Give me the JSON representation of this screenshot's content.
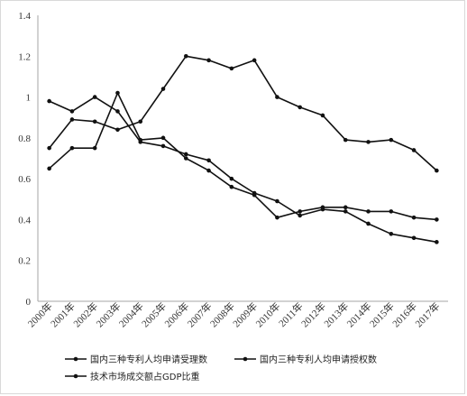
{
  "chart_data": {
    "type": "line",
    "categories": [
      "2000年",
      "2001年",
      "2002年",
      "2003年",
      "2004年",
      "2005年",
      "2006年",
      "2007年",
      "2008年",
      "2009年",
      "2010年",
      "2011年",
      "2012年",
      "2013年",
      "2014年",
      "2015年",
      "2016年",
      "2017年"
    ],
    "ylim": [
      0,
      1.4
    ],
    "yticks": [
      0,
      0.2,
      0.4,
      0.6,
      0.8,
      1,
      1.2,
      1.4
    ],
    "ytick_labels": [
      "0",
      "0.2",
      "0.4",
      "0.6",
      "0.8",
      "1",
      "1.2",
      "1.4"
    ],
    "grid": false,
    "legend_position": "bottom",
    "series": [
      {
        "name": "国内三种专利人均申请受理数",
        "color": "#111111",
        "values": [
          0.98,
          0.93,
          1.0,
          0.93,
          0.78,
          0.76,
          0.72,
          0.69,
          0.6,
          0.53,
          0.49,
          0.42,
          0.45,
          0.44,
          0.38,
          0.33,
          0.31,
          0.29
        ]
      },
      {
        "name": "国内三种专利人均申请授权数",
        "color": "#111111",
        "values": [
          0.65,
          0.75,
          0.75,
          1.02,
          0.79,
          0.8,
          0.7,
          0.64,
          0.56,
          0.52,
          0.41,
          0.44,
          0.46,
          0.46,
          0.44,
          0.44,
          0.41,
          0.4
        ]
      },
      {
        "name": "技术市场成交额占GDP比重",
        "color": "#111111",
        "values": [
          0.75,
          0.89,
          0.88,
          0.84,
          0.88,
          1.04,
          1.2,
          1.18,
          1.14,
          1.18,
          1.0,
          0.95,
          0.91,
          0.79,
          0.78,
          0.79,
          0.74,
          0.64
        ]
      }
    ]
  }
}
